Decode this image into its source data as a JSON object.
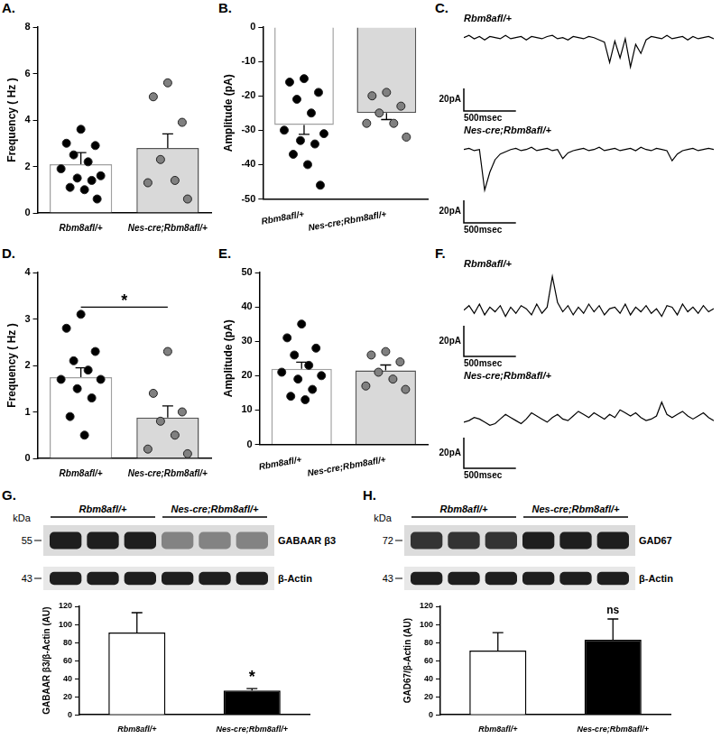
{
  "chart_data": [
    {
      "panel": "A.",
      "type": "bar",
      "y_label": "Frequency ( Hz )",
      "categories": [
        "Rbm8afl/+",
        "Nes-cre;Rbm8afl/+"
      ],
      "values": [
        2.1,
        2.8
      ],
      "errors": [
        0.5,
        0.6
      ],
      "points": [
        [
          3.6,
          3.0,
          2.9,
          2.5,
          2.2,
          1.9,
          1.6,
          1.5,
          1.4,
          1.1,
          1.0,
          0.6
        ],
        [
          5.6,
          5.0,
          3.9,
          2.3,
          1.4,
          1.3,
          0.6
        ]
      ],
      "colors": [
        "#ffffff",
        "#d9d9d9"
      ],
      "ylim": [
        0,
        8
      ],
      "yticks": [
        0,
        2,
        4,
        6,
        8
      ],
      "grid": false
    },
    {
      "panel": "B.",
      "type": "bar",
      "y_label": "Amplitude (pA)",
      "categories": [
        "Rbm8afl/+",
        "Nes-cre;Rbm8afl/+"
      ],
      "values": [
        -28.5,
        -25
      ],
      "errors": [
        2.7,
        1.9
      ],
      "points": [
        [
          -15,
          -16,
          -19,
          -21,
          -25,
          -30,
          -31,
          -33,
          -34,
          -37,
          -40,
          -46
        ],
        [
          -19,
          -20,
          -23,
          -25,
          -28,
          -28,
          -32
        ]
      ],
      "colors": [
        "#ffffff",
        "#d9d9d9"
      ],
      "ylim": [
        -50,
        0
      ],
      "yticks": [
        -50,
        -40,
        -30,
        -20,
        -10,
        0
      ],
      "grid": false
    },
    {
      "panel": "C.",
      "type": "line",
      "x": [
        0,
        50,
        100,
        150,
        200,
        250,
        300,
        350,
        400,
        450,
        500,
        550,
        600,
        650,
        700,
        750,
        800,
        850,
        900,
        950,
        1000,
        1050,
        1100,
        1150,
        1200,
        1250,
        1300,
        1350,
        1400,
        1450,
        1500,
        1550,
        1600,
        1650,
        1700,
        1750,
        1800,
        1850,
        1900,
        1950,
        2000,
        2050,
        2100,
        2150,
        2200,
        2250,
        2300,
        2350,
        2400
      ],
      "xlim": [
        0,
        2400
      ],
      "ylim": [
        -65,
        10
      ],
      "traces": [
        {
          "title": "Rbm8afl/+",
          "values": [
            0,
            2,
            -1,
            1,
            -2,
            1,
            0,
            -1,
            2,
            -1,
            0,
            1,
            -2,
            1,
            0,
            -1,
            1,
            2,
            -1,
            0,
            -2,
            1,
            0,
            -1,
            1,
            0,
            -2,
            -4,
            -22,
            -3,
            -18,
            -1,
            -26,
            -6,
            -14,
            -2,
            1,
            0,
            -1,
            2,
            -1,
            0,
            1,
            -2,
            1,
            -1,
            0,
            1,
            -1
          ]
        },
        {
          "title": "Nes-cre;Rbm8afl/+",
          "values": [
            0,
            1,
            -1,
            0,
            -36,
            -20,
            -9,
            -4,
            -2,
            0,
            1,
            -1,
            0,
            2,
            -1,
            0,
            1,
            -1,
            0,
            -8,
            -3,
            -1,
            0,
            1,
            -1,
            0,
            2,
            -1,
            0,
            1,
            -1,
            0,
            1,
            -1,
            2,
            0,
            -1,
            1,
            0,
            -1,
            -10,
            -4,
            -1,
            0,
            1,
            -1,
            0,
            1,
            0
          ]
        }
      ],
      "scale_bar": {
        "x": 500,
        "x_label": "500msec",
        "y": 20,
        "y_label": "20pA"
      },
      "tick_labels": false,
      "color": "#000000"
    },
    {
      "panel": "D.",
      "type": "bar",
      "y_label": "Frequency ( Hz )",
      "categories": [
        "Rbm8afl/+",
        "Nes-cre;Rbm8afl/+"
      ],
      "values": [
        1.75,
        0.88
      ],
      "errors": [
        0.2,
        0.25
      ],
      "points": [
        [
          3.1,
          2.8,
          2.3,
          2.1,
          1.9,
          1.7,
          1.7,
          1.5,
          1.3,
          0.9,
          0.5
        ],
        [
          2.3,
          1.4,
          1.0,
          0.8,
          0.5,
          0.2,
          0.1
        ]
      ],
      "colors": [
        "#ffffff",
        "#d9d9d9"
      ],
      "ylim": [
        0,
        4
      ],
      "yticks": [
        0,
        1,
        2,
        3,
        4
      ],
      "grid": false,
      "annotations": [
        {
          "text": "*",
          "between": [
            0,
            1
          ]
        }
      ]
    },
    {
      "panel": "E.",
      "type": "bar",
      "y_label": "Amplitude (pA)",
      "categories": [
        "Rbm8afl/+",
        "Nes-cre;Rbm8afl/+"
      ],
      "values": [
        22,
        21.5
      ],
      "errors": [
        1.9,
        1.6
      ],
      "points": [
        [
          35,
          31,
          28,
          26,
          23,
          21,
          20,
          19,
          16,
          14,
          13
        ],
        [
          27,
          26,
          24,
          21,
          19,
          17,
          16
        ]
      ],
      "colors": [
        "#ffffff",
        "#d9d9d9"
      ],
      "ylim": [
        0,
        50
      ],
      "yticks": [
        0,
        10,
        20,
        30,
        40,
        50
      ],
      "grid": false
    },
    {
      "panel": "F.",
      "type": "line",
      "x": [
        0,
        50,
        100,
        150,
        200,
        250,
        300,
        350,
        400,
        450,
        500,
        550,
        600,
        650,
        700,
        750,
        800,
        850,
        900,
        950,
        1000,
        1050,
        1100,
        1150,
        1200,
        1250,
        1300,
        1350,
        1400,
        1450,
        1500,
        1550,
        1600,
        1650,
        1700,
        1750,
        1800,
        1850,
        1900,
        1950,
        2000,
        2050,
        2100,
        2150,
        2200,
        2250,
        2300,
        2350,
        2400
      ],
      "xlim": [
        0,
        2400
      ],
      "ylim": [
        -30,
        25
      ],
      "traces": [
        {
          "title": "Rbm8afl/+",
          "values": [
            0,
            3,
            -2,
            4,
            -3,
            2,
            -1,
            3,
            -4,
            2,
            -2,
            3,
            1,
            -3,
            4,
            -2,
            2,
            22,
            5,
            -1,
            3,
            -3,
            2,
            -2,
            4,
            -1,
            3,
            -3,
            1,
            2,
            -2,
            4,
            -3,
            2,
            -1,
            3,
            -2,
            1,
            -4,
            3,
            2,
            -3,
            4,
            -1,
            2,
            -2,
            3,
            -1,
            1
          ]
        },
        {
          "title": "Nes-cre;Rbm8afl/+",
          "values": [
            0,
            1,
            3,
            2,
            0,
            -2,
            -1,
            2,
            5,
            3,
            1,
            -1,
            2,
            6,
            4,
            2,
            0,
            3,
            5,
            2,
            1,
            4,
            7,
            5,
            3,
            6,
            4,
            2,
            5,
            3,
            8,
            6,
            4,
            6,
            3,
            1,
            2,
            4,
            13,
            5,
            3,
            5,
            7,
            4,
            2,
            4,
            6,
            3,
            1
          ]
        }
      ],
      "scale_bar": {
        "x": 500,
        "x_label": "500msec",
        "y": 20,
        "y_label": "20pA"
      },
      "tick_labels": false,
      "color": "#000000"
    },
    {
      "panel": "G.",
      "type": "bar",
      "y_label": "GABAAR β3/β-Actin (AU)",
      "categories": [
        "Rbm8afl/+",
        "Nes-cre;Rbm8afl/+"
      ],
      "values": [
        91,
        27
      ],
      "errors": [
        22,
        2
      ],
      "colors": [
        "#ffffff",
        "#000000"
      ],
      "ylim": [
        0,
        120
      ],
      "yticks": [
        0,
        20,
        40,
        60,
        80,
        100,
        120
      ],
      "grid": false,
      "annotations": [
        {
          "text": "*",
          "category": 1
        }
      ],
      "blot": {
        "unit": "kDa",
        "groups": [
          {
            "label": "Rbm8afl/+",
            "lanes": 3
          },
          {
            "label": "Nes-cre;Rbm8afl/+",
            "lanes": 3
          }
        ],
        "rows": [
          {
            "label": "GABAAR β3",
            "kda": "55"
          },
          {
            "label": "β-Actin",
            "kda": "43"
          }
        ]
      }
    },
    {
      "panel": "H.",
      "type": "bar",
      "y_label": "GAD67/β-Actin (AU)",
      "categories": [
        "Rbm8afl/+",
        "Nes-cre;Rbm8afl/+"
      ],
      "values": [
        71,
        83
      ],
      "errors": [
        20,
        23
      ],
      "colors": [
        "#ffffff",
        "#000000"
      ],
      "ylim": [
        0,
        120
      ],
      "yticks": [
        0,
        20,
        40,
        60,
        80,
        100,
        120
      ],
      "grid": false,
      "annotations": [
        {
          "text": "ns",
          "category": 1
        }
      ],
      "blot": {
        "unit": "kDa",
        "groups": [
          {
            "label": "Rbm8afl/+",
            "lanes": 3
          },
          {
            "label": "Nes-cre;Rbm8afl/+",
            "lanes": 3
          }
        ],
        "rows": [
          {
            "label": "GAD67",
            "kda": "72"
          },
          {
            "label": "β-Actin",
            "kda": "43"
          }
        ]
      }
    }
  ]
}
